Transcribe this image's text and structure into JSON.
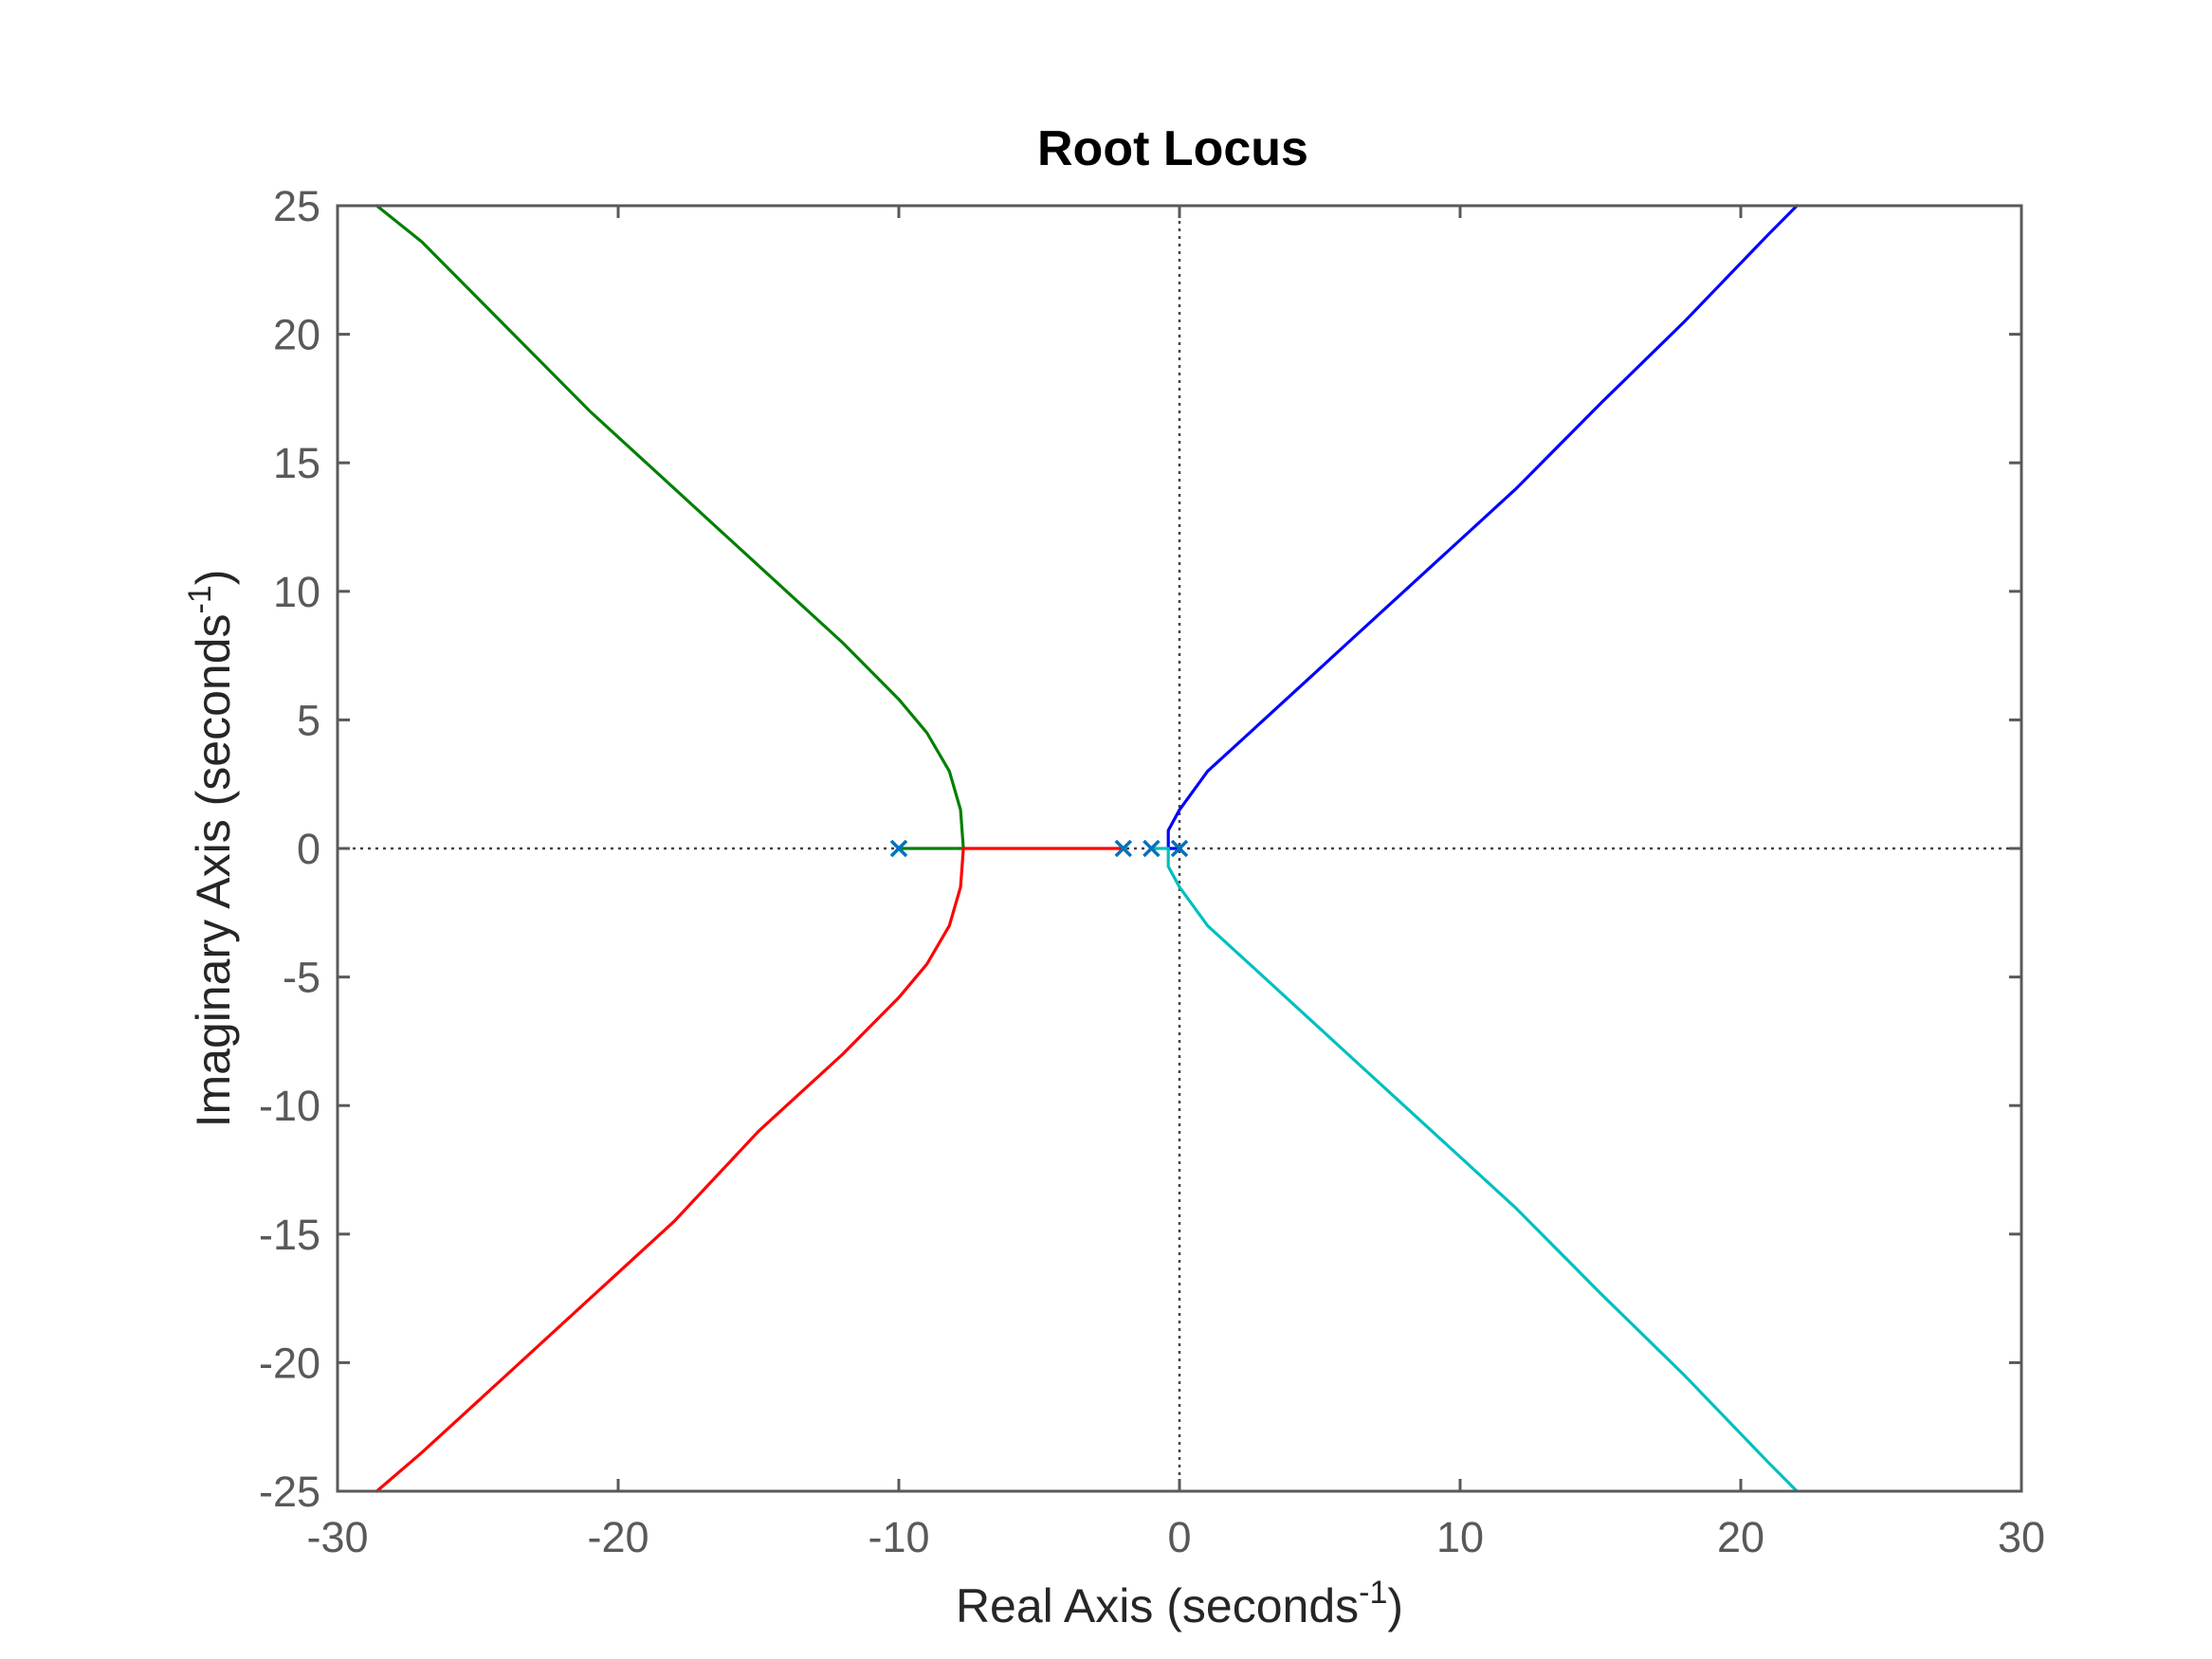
{
  "chart_data": {
    "type": "line",
    "title": "Root Locus",
    "xlabel": {
      "text": "Real Axis (seconds",
      "sup": "-1",
      "close": ")"
    },
    "ylabel": {
      "text": "Imaginary Axis (seconds",
      "sup": "-1",
      "close": ")"
    },
    "xlim": [
      -30,
      30
    ],
    "ylim": [
      -25,
      25
    ],
    "xticks": [
      -30,
      -20,
      -10,
      0,
      10,
      20,
      30
    ],
    "yticks": [
      -25,
      -20,
      -15,
      -10,
      -5,
      0,
      5,
      10,
      15,
      20,
      25
    ],
    "xtick_labels": [
      "-30",
      "-20",
      "-10",
      "0",
      "10",
      "20",
      "30"
    ],
    "ytick_labels": [
      "-25",
      "-20",
      "-15",
      "-10",
      "-5",
      "0",
      "5",
      "10",
      "15",
      "20",
      "25"
    ],
    "grid": false,
    "reference_lines": {
      "x": 0,
      "y": 0,
      "style": "dotted"
    },
    "poles": {
      "marker": "x",
      "color": "#0072BD",
      "points": [
        [
          -10,
          0
        ],
        [
          -2,
          0
        ],
        [
          -1,
          0
        ],
        [
          0,
          0
        ]
      ]
    },
    "series": [
      {
        "color": "#008000",
        "points": [
          [
            -10,
            0
          ],
          [
            -7.7,
            0
          ],
          [
            -7.8,
            1.5
          ],
          [
            -8.2,
            3
          ],
          [
            -9,
            4.5
          ],
          [
            -10,
            5.8
          ],
          [
            -12,
            8
          ],
          [
            -15,
            11
          ],
          [
            -18,
            14
          ],
          [
            -21,
            17
          ],
          [
            -24,
            20.3
          ],
          [
            -27,
            23.6
          ],
          [
            -28.6,
            25
          ]
        ]
      },
      {
        "color": "#FF0000",
        "points": [
          [
            -2,
            0
          ],
          [
            -7.7,
            0
          ],
          [
            -7.8,
            -1.5
          ],
          [
            -8.2,
            -3
          ],
          [
            -9,
            -4.5
          ],
          [
            -10,
            -5.8
          ],
          [
            -12,
            -8
          ],
          [
            -15,
            -11
          ],
          [
            -18,
            -14.5
          ],
          [
            -21,
            -17.5
          ],
          [
            -24,
            -20.5
          ],
          [
            -27,
            -23.5
          ],
          [
            -28.6,
            -25
          ]
        ]
      },
      {
        "color": "#0000FF",
        "points": [
          [
            0,
            0
          ],
          [
            -0.4,
            0
          ],
          [
            -0.4,
            0.7
          ],
          [
            0,
            1.5
          ],
          [
            1,
            3
          ],
          [
            2.5,
            4.5
          ],
          [
            4,
            6
          ],
          [
            6,
            8
          ],
          [
            9,
            11
          ],
          [
            12,
            14
          ],
          [
            15,
            17.3
          ],
          [
            18,
            20.5
          ],
          [
            21,
            23.9
          ],
          [
            22,
            25
          ]
        ]
      },
      {
        "color": "#00BFBF",
        "points": [
          [
            -1,
            0
          ],
          [
            -0.4,
            0
          ],
          [
            -0.4,
            -0.7
          ],
          [
            0,
            -1.5
          ],
          [
            1,
            -3
          ],
          [
            2.5,
            -4.5
          ],
          [
            4,
            -6
          ],
          [
            6,
            -8
          ],
          [
            9,
            -11
          ],
          [
            12,
            -14
          ],
          [
            15,
            -17.3
          ],
          [
            18,
            -20.5
          ],
          [
            21,
            -23.9
          ],
          [
            22,
            -25
          ]
        ]
      }
    ]
  }
}
